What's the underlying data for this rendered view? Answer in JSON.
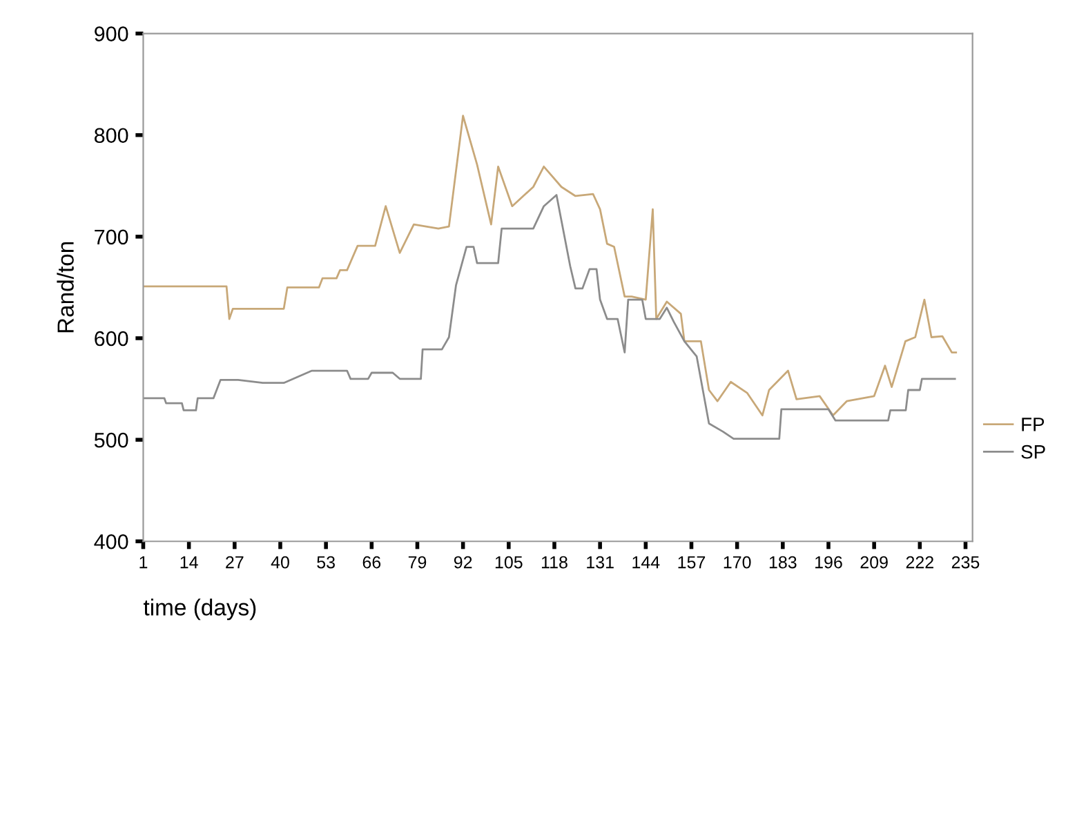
{
  "chart_data": {
    "type": "line",
    "xlabel": "time (days)",
    "ylabel": "Rand/ton",
    "xlim": [
      1,
      237
    ],
    "xticks": [
      1,
      14,
      27,
      40,
      53,
      66,
      79,
      92,
      105,
      118,
      131,
      144,
      157,
      170,
      183,
      196,
      209,
      222,
      235
    ],
    "ylim": [
      400,
      900
    ],
    "yticks": [
      400,
      500,
      600,
      700,
      800,
      900
    ],
    "grid": false,
    "legend": "right",
    "marker": "none",
    "line_style": "solid",
    "series": [
      {
        "name": "FP",
        "color": "#c8a878",
        "x": [
          1,
          24.7,
          25.5,
          26.5,
          41,
          42,
          51,
          52,
          56,
          57,
          59,
          62,
          67,
          70,
          74,
          78,
          85,
          88,
          92,
          96,
          100,
          102,
          106,
          112,
          115,
          120,
          124,
          129,
          131,
          133,
          135,
          138,
          140,
          144,
          146,
          147,
          150,
          154,
          155,
          159.7,
          162,
          164.4,
          168.2,
          172.9,
          177.2,
          179.1,
          184.5,
          186.9,
          193.5,
          197.3,
          201.2,
          209,
          212.1,
          214,
          217.9,
          220.7,
          223.3,
          225.3,
          228.4,
          231.1,
          232.3
        ],
        "values": [
          651,
          651,
          619,
          629,
          629,
          650,
          650,
          659,
          659,
          667,
          667,
          691,
          691,
          730,
          684,
          712,
          708,
          710,
          819,
          771,
          712,
          769,
          730,
          749,
          769,
          749,
          740,
          742,
          727,
          693,
          690,
          641,
          641,
          638,
          727,
          619,
          636,
          624,
          597,
          597,
          549,
          538,
          557,
          546,
          524,
          549,
          568,
          540,
          543,
          524,
          538,
          543,
          573,
          552,
          597,
          601,
          638,
          601,
          602,
          586,
          586
        ]
      },
      {
        "name": "SP",
        "color": "#8c8c8c",
        "x": [
          1,
          7,
          7.5,
          12,
          12.5,
          16,
          16.5,
          21,
          23,
          28,
          35,
          41,
          49,
          59,
          60,
          65,
          66,
          72,
          74,
          80,
          80.5,
          86,
          88,
          90,
          93,
          95,
          96,
          102,
          103,
          112,
          115,
          118.6,
          122.5,
          124,
          126,
          128,
          130,
          131,
          133,
          136,
          138,
          139,
          143,
          144,
          148,
          150,
          152,
          155,
          158.5,
          162,
          166,
          169,
          182,
          182.6,
          196,
          198,
          213,
          213.6,
          218,
          218.7,
          222,
          222.6,
          232
        ],
        "values": [
          541,
          541,
          536,
          536,
          529,
          529,
          541,
          541,
          559,
          559,
          556,
          556,
          568,
          568,
          560,
          560,
          566,
          566,
          560,
          560,
          589,
          589,
          601,
          652,
          690,
          690,
          674,
          674,
          708,
          708,
          730,
          741,
          671,
          649,
          649,
          668,
          668,
          638,
          619,
          619,
          586,
          638,
          638,
          619,
          619,
          630,
          616,
          597,
          582,
          516,
          508,
          501,
          501,
          530,
          530,
          519,
          519,
          529,
          529,
          549,
          549,
          560,
          560
        ]
      }
    ]
  }
}
